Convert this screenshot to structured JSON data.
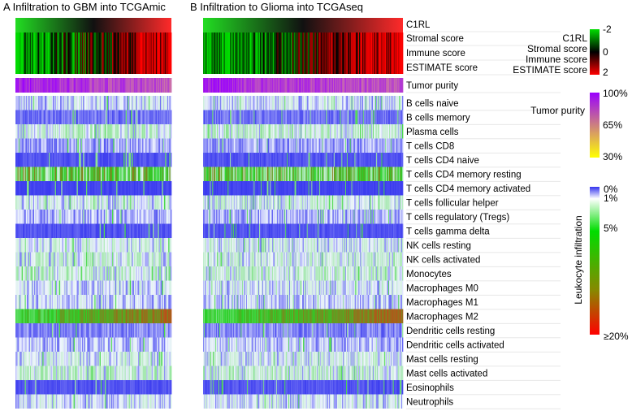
{
  "chart_data": {
    "type": "heatmap",
    "panels": [
      {
        "letter": "A",
        "title": "Infiltration to GBM into TCGAmic",
        "columns": 150
      },
      {
        "letter": "B",
        "title": "Infiltration to Glioma into TCGAseq",
        "columns": 260
      }
    ],
    "score_rows": [
      "C1RL",
      "Stromal score",
      "Immune score",
      "ESTIMATE score"
    ],
    "purity_row": "Tumor purity",
    "cell_types": [
      {
        "name": "B cells naive",
        "level": 0.12
      },
      {
        "name": "B cells memory",
        "level": 0.04
      },
      {
        "name": "Plasma cells",
        "level": 0.18
      },
      {
        "name": "T cells CD8",
        "level": 0.07
      },
      {
        "name": "T cells CD4 naive",
        "level": 0.02
      },
      {
        "name": "T cells CD4 memory resting",
        "level": 0.45
      },
      {
        "name": "T cells CD4 memory activated",
        "level": 0.01
      },
      {
        "name": "T cells follicular helper",
        "level": 0.15
      },
      {
        "name": "T cells regulatory (Tregs)",
        "level": 0.08
      },
      {
        "name": "T cells gamma delta",
        "level": 0.02
      },
      {
        "name": "NK cells resting",
        "level": 0.14
      },
      {
        "name": "NK cells activated",
        "level": 0.16
      },
      {
        "name": "Monocytes",
        "level": 0.18
      },
      {
        "name": "Macrophages M0",
        "level": 0.12
      },
      {
        "name": "Macrophages M1",
        "level": 0.1
      },
      {
        "name": "Macrophages M2",
        "level": 0.78
      },
      {
        "name": "Dendritic cells resting",
        "level": 0.05
      },
      {
        "name": "Dendritic cells activated",
        "level": 0.09
      },
      {
        "name": "Mast cells resting",
        "level": 0.14
      },
      {
        "name": "Mast cells activated",
        "level": 0.18
      },
      {
        "name": "Eosinophils",
        "level": 0.02
      },
      {
        "name": "Neutrophils",
        "level": 0.12
      }
    ],
    "legends": {
      "scores": {
        "labels": [
          "C1RL",
          "Stromal score",
          "Immune score",
          "ESTIMATE score"
        ],
        "ticks": [
          "-2",
          "0",
          "2"
        ],
        "range": [
          -2,
          2
        ],
        "colors": [
          "#00dd00",
          "#000000",
          "#ff0000"
        ]
      },
      "purity": {
        "title": "Tumor purity",
        "ticks": [
          "100%",
          "65%",
          "30%"
        ],
        "colors": [
          "#9900ff",
          "#ffff00"
        ]
      },
      "leukocyte": {
        "title": "Leukocyte infiltration",
        "ticks": [
          "0%",
          "1%",
          "5%",
          "≥20%"
        ],
        "colors": [
          "#3333ee",
          "#ffffff",
          "#00dd00",
          "#ff0000"
        ]
      }
    }
  }
}
